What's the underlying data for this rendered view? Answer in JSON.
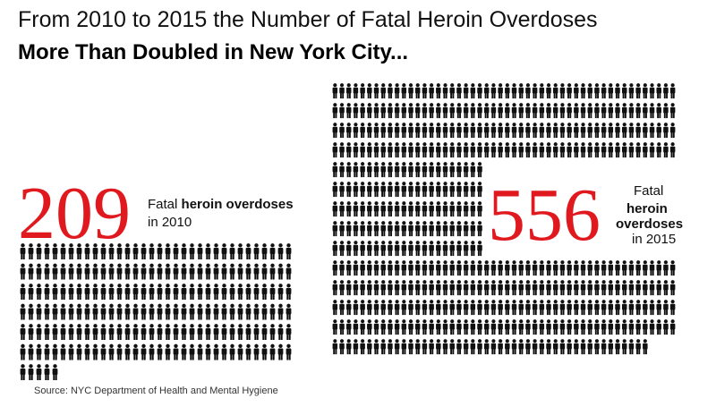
{
  "chart_data": {
    "type": "pictogram",
    "title": "From 2010 to 2015 the Number of Fatal Heroin Overdoses",
    "subtitle": "More Than Doubled in New York City...",
    "icon_color": "#111111",
    "number_color": "#e0191f",
    "series": [
      {
        "value": 209,
        "label_start": "Fatal",
        "label_bold": "heroin overdoses",
        "label_end": "in 2010"
      },
      {
        "value": 556,
        "label_start": "Fatal",
        "label_bold": "heroin overdoses",
        "label_end": "in 2015"
      }
    ],
    "source": "Source: NYC Department of Health and Mental Hygiene"
  }
}
